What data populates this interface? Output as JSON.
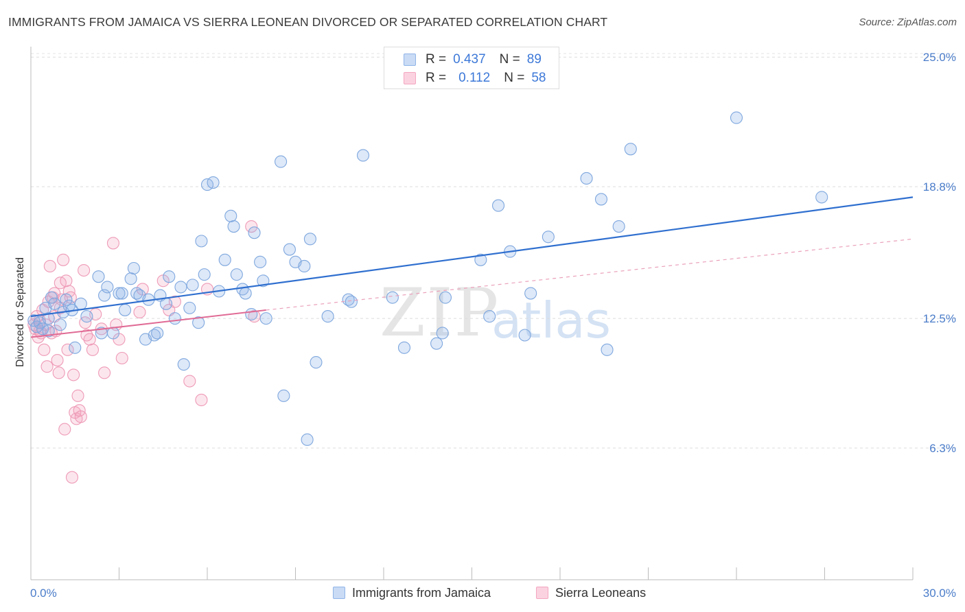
{
  "title": "IMMIGRANTS FROM JAMAICA VS SIERRA LEONEAN DIVORCED OR SEPARATED CORRELATION CHART",
  "source": "Source: ZipAtlas.com",
  "watermark": {
    "zip": "ZIP",
    "atlas": "atlas"
  },
  "legend_top": [
    {
      "r_label": "R =",
      "r_value": "0.437",
      "n_label": "N =",
      "n_value": "89"
    },
    {
      "r_label": "R =",
      "r_value": "0.112",
      "n_label": "N =",
      "n_value": "58"
    }
  ],
  "chart_data": {
    "type": "scatter",
    "title": "IMMIGRANTS FROM JAMAICA VS SIERRA LEONEAN DIVORCED OR SEPARATED CORRELATION CHART",
    "xlabel": "",
    "ylabel": "Divorced or Separated",
    "xlim": [
      0,
      30
    ],
    "ylim": [
      0,
      25.5
    ],
    "x_tick_labels": [
      "0.0%",
      "30.0%"
    ],
    "y_ticks": [
      6.3,
      12.5,
      18.8,
      25.0
    ],
    "y_tick_labels": [
      "6.3%",
      "12.5%",
      "18.8%",
      "25.0%"
    ],
    "grid": true,
    "legend_position": "bottom",
    "colors": {
      "jamaica": "#8fb4e8",
      "jamaica_line": "#2f6fcf",
      "sierra": "#f4a6c0",
      "sierra_line": "#e06a94"
    },
    "series": [
      {
        "name": "Immigrants from Jamaica",
        "points": [
          [
            0.1,
            12.4
          ],
          [
            0.2,
            12.1
          ],
          [
            0.3,
            12.3
          ],
          [
            0.4,
            12.0
          ],
          [
            0.5,
            13.0
          ],
          [
            0.6,
            12.5
          ],
          [
            0.7,
            13.5
          ],
          [
            0.8,
            13.2
          ],
          [
            1.0,
            12.2
          ],
          [
            1.1,
            12.8
          ],
          [
            1.3,
            13.1
          ],
          [
            1.4,
            12.9
          ],
          [
            1.5,
            11.1
          ],
          [
            1.7,
            13.2
          ],
          [
            1.9,
            12.6
          ],
          [
            2.3,
            14.5
          ],
          [
            2.4,
            11.8
          ],
          [
            2.5,
            13.6
          ],
          [
            2.6,
            14.0
          ],
          [
            2.8,
            11.8
          ],
          [
            3.0,
            13.7
          ],
          [
            3.1,
            13.7
          ],
          [
            3.2,
            12.9
          ],
          [
            3.4,
            14.4
          ],
          [
            3.5,
            14.9
          ],
          [
            3.6,
            13.7
          ],
          [
            3.7,
            13.6
          ],
          [
            3.9,
            11.5
          ],
          [
            4.0,
            13.4
          ],
          [
            4.2,
            11.7
          ],
          [
            4.3,
            11.8
          ],
          [
            4.4,
            13.6
          ],
          [
            4.6,
            13.2
          ],
          [
            4.7,
            14.5
          ],
          [
            4.9,
            12.5
          ],
          [
            5.1,
            14.0
          ],
          [
            5.2,
            10.3
          ],
          [
            5.4,
            13.0
          ],
          [
            5.5,
            14.1
          ],
          [
            5.7,
            12.3
          ],
          [
            5.8,
            16.2
          ],
          [
            5.9,
            14.6
          ],
          [
            6.0,
            18.9
          ],
          [
            6.2,
            19.0
          ],
          [
            6.4,
            13.8
          ],
          [
            6.6,
            15.3
          ],
          [
            6.8,
            17.4
          ],
          [
            6.9,
            16.9
          ],
          [
            7.0,
            14.6
          ],
          [
            7.2,
            13.9
          ],
          [
            7.3,
            13.7
          ],
          [
            7.5,
            12.7
          ],
          [
            7.6,
            16.6
          ],
          [
            7.8,
            15.2
          ],
          [
            7.9,
            14.3
          ],
          [
            8.0,
            12.5
          ],
          [
            8.5,
            20.0
          ],
          [
            8.6,
            8.8
          ],
          [
            8.8,
            15.8
          ],
          [
            9.0,
            15.2
          ],
          [
            9.3,
            15.0
          ],
          [
            9.4,
            6.7
          ],
          [
            9.5,
            16.3
          ],
          [
            9.7,
            10.4
          ],
          [
            10.1,
            12.6
          ],
          [
            10.8,
            13.4
          ],
          [
            10.9,
            13.3
          ],
          [
            11.3,
            20.3
          ],
          [
            12.3,
            13.5
          ],
          [
            12.7,
            11.1
          ],
          [
            13.8,
            11.3
          ],
          [
            14.0,
            11.8
          ],
          [
            14.1,
            13.5
          ],
          [
            15.3,
            15.3
          ],
          [
            15.6,
            12.6
          ],
          [
            15.9,
            17.9
          ],
          [
            16.3,
            15.7
          ],
          [
            16.8,
            11.7
          ],
          [
            17.0,
            13.7
          ],
          [
            17.6,
            16.4
          ],
          [
            18.9,
            19.2
          ],
          [
            19.4,
            18.2
          ],
          [
            19.6,
            11.0
          ],
          [
            20.0,
            16.9
          ],
          [
            20.4,
            20.6
          ],
          [
            24.0,
            22.1
          ],
          [
            26.9,
            18.3
          ],
          [
            0.6,
            11.9
          ],
          [
            1.2,
            13.4
          ]
        ],
        "trend": [
          [
            0,
            12.6
          ],
          [
            30,
            18.3
          ]
        ]
      },
      {
        "name": "Sierra Leoneans",
        "points": [
          [
            0.1,
            12.2
          ],
          [
            0.15,
            12.0
          ],
          [
            0.2,
            12.6
          ],
          [
            0.25,
            11.6
          ],
          [
            0.3,
            12.4
          ],
          [
            0.35,
            11.8
          ],
          [
            0.4,
            12.9
          ],
          [
            0.45,
            11.0
          ],
          [
            0.5,
            12.2
          ],
          [
            0.55,
            10.2
          ],
          [
            0.6,
            13.3
          ],
          [
            0.65,
            15.0
          ],
          [
            0.7,
            11.8
          ],
          [
            0.75,
            13.5
          ],
          [
            0.8,
            13.7
          ],
          [
            0.85,
            11.9
          ],
          [
            0.9,
            10.5
          ],
          [
            0.95,
            9.9
          ],
          [
            1.0,
            14.2
          ],
          [
            1.05,
            13.4
          ],
          [
            1.1,
            15.3
          ],
          [
            1.15,
            7.2
          ],
          [
            1.2,
            14.3
          ],
          [
            1.25,
            11.0
          ],
          [
            1.3,
            13.8
          ],
          [
            1.35,
            13.5
          ],
          [
            1.4,
            4.9
          ],
          [
            1.45,
            9.8
          ],
          [
            1.5,
            8.0
          ],
          [
            1.55,
            7.7
          ],
          [
            1.6,
            8.8
          ],
          [
            1.65,
            8.1
          ],
          [
            1.7,
            7.8
          ],
          [
            1.8,
            14.8
          ],
          [
            1.85,
            12.3
          ],
          [
            2.0,
            11.5
          ],
          [
            2.1,
            11.0
          ],
          [
            2.2,
            12.7
          ],
          [
            2.5,
            9.9
          ],
          [
            2.8,
            16.1
          ],
          [
            2.9,
            12.2
          ],
          [
            3.0,
            11.5
          ],
          [
            3.1,
            10.6
          ],
          [
            3.7,
            12.8
          ],
          [
            3.8,
            13.9
          ],
          [
            4.5,
            14.3
          ],
          [
            4.7,
            12.9
          ],
          [
            4.9,
            13.3
          ],
          [
            5.4,
            9.5
          ],
          [
            5.8,
            8.6
          ],
          [
            6.0,
            13.9
          ],
          [
            7.5,
            16.9
          ],
          [
            7.6,
            12.6
          ],
          [
            1.9,
            11.7
          ],
          [
            0.8,
            12.6
          ],
          [
            1.0,
            13.0
          ],
          [
            2.4,
            12.0
          ],
          [
            0.3,
            11.9
          ]
        ],
        "trend": [
          [
            0,
            11.6
          ],
          [
            8,
            12.9
          ]
        ],
        "trend_dashed": [
          [
            8,
            12.9
          ],
          [
            30,
            16.3
          ]
        ]
      }
    ]
  },
  "bottom_legend": [
    {
      "label": "Immigrants from Jamaica"
    },
    {
      "label": "Sierra Leoneans"
    }
  ]
}
